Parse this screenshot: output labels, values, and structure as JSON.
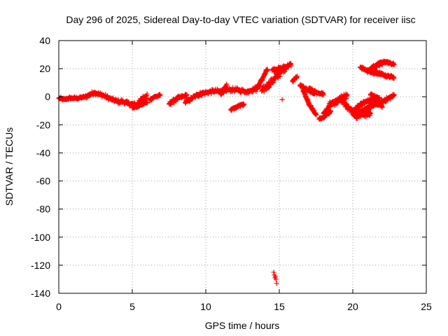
{
  "chart_data": {
    "type": "scatter",
    "title": "Day 296 of 2025, Sidereal Day-to-day VTEC variation (SDTVAR) for receiver iisc",
    "xlabel": "GPS time / hours",
    "ylabel": "SDTVAR / TECUs",
    "xlim": [
      0,
      25
    ],
    "ylim": [
      -140,
      40
    ],
    "xticks": [
      0,
      5,
      10,
      15,
      20,
      25
    ],
    "yticks": [
      -140,
      -120,
      -100,
      -80,
      -60,
      -40,
      -20,
      0,
      20,
      40
    ],
    "xtick_labels": [
      "0",
      "5",
      "10",
      "15",
      "20",
      "25"
    ],
    "ytick_labels": [
      "-140",
      "-120",
      "-100",
      "-80",
      "-60",
      "-40",
      "-20",
      "0",
      "20",
      "40"
    ],
    "grid": true,
    "marker": "+",
    "color": "#ff0000",
    "series": [
      {
        "name": "iisc",
        "segments": [
          {
            "start": 0.0,
            "end": 0.7,
            "step": 0.04,
            "points": [
              [
                0.0,
                -1
              ],
              [
                0.35,
                -2
              ],
              [
                0.7,
                -1
              ]
            ],
            "band": 2
          },
          {
            "start": 0.7,
            "end": 1.8,
            "step": 0.04,
            "points": [
              [
                0.7,
                -1
              ],
              [
                1.3,
                -1
              ],
              [
                1.8,
                0
              ]
            ],
            "band": 2
          },
          {
            "start": 1.8,
            "end": 3.0,
            "step": 0.04,
            "points": [
              [
                1.8,
                0
              ],
              [
                2.4,
                3
              ],
              [
                3.0,
                1
              ]
            ],
            "band": 3
          },
          {
            "start": 3.0,
            "end": 4.2,
            "step": 0.04,
            "points": [
              [
                3.0,
                1
              ],
              [
                3.6,
                -2
              ],
              [
                4.2,
                -4
              ]
            ],
            "band": 3
          },
          {
            "start": 4.2,
            "end": 5.5,
            "step": 0.04,
            "points": [
              [
                4.2,
                -3
              ],
              [
                4.8,
                -5
              ],
              [
                5.5,
                -6
              ]
            ],
            "band": 3
          },
          {
            "start": 5.3,
            "end": 6.0,
            "step": 0.03,
            "points": [
              [
                5.3,
                -7
              ],
              [
                5.6,
                -2
              ],
              [
                6.0,
                1
              ]
            ],
            "band": 4
          },
          {
            "start": 5.0,
            "end": 6.0,
            "step": 0.04,
            "points": [
              [
                5.0,
                -8
              ],
              [
                5.5,
                -6
              ],
              [
                6.0,
                -4
              ]
            ],
            "band": 2
          },
          {
            "start": 6.2,
            "end": 6.9,
            "step": 0.04,
            "points": [
              [
                6.2,
                -2
              ],
              [
                6.5,
                0
              ],
              [
                6.9,
                1
              ]
            ],
            "band": 2
          },
          {
            "start": 7.5,
            "end": 8.7,
            "step": 0.04,
            "points": [
              [
                7.5,
                -5
              ],
              [
                8.1,
                -1
              ],
              [
                8.7,
                1
              ]
            ],
            "band": 3
          },
          {
            "start": 8.6,
            "end": 9.8,
            "step": 0.04,
            "points": [
              [
                8.6,
                -4
              ],
              [
                9.2,
                0
              ],
              [
                9.8,
                3
              ]
            ],
            "band": 3
          },
          {
            "start": 9.6,
            "end": 11.3,
            "step": 0.04,
            "points": [
              [
                9.6,
                2
              ],
              [
                10.5,
                4
              ],
              [
                11.3,
                4
              ]
            ],
            "band": 3
          },
          {
            "start": 11.0,
            "end": 11.4,
            "step": 0.04,
            "points": [
              [
                11.0,
                2
              ],
              [
                11.2,
                5
              ],
              [
                11.4,
                8
              ]
            ],
            "band": 2
          },
          {
            "start": 11.3,
            "end": 12.6,
            "step": 0.04,
            "points": [
              [
                11.3,
                5
              ],
              [
                12.0,
                5
              ],
              [
                12.6,
                4
              ]
            ],
            "band": 3
          },
          {
            "start": 11.7,
            "end": 12.6,
            "step": 0.04,
            "points": [
              [
                11.7,
                -9
              ],
              [
                12.1,
                -7
              ],
              [
                12.6,
                -5
              ]
            ],
            "band": 2
          },
          {
            "start": 12.6,
            "end": 13.7,
            "step": 0.04,
            "points": [
              [
                12.6,
                3
              ],
              [
                13.2,
                5
              ],
              [
                13.7,
                8
              ]
            ],
            "band": 3
          },
          {
            "start": 13.4,
            "end": 14.2,
            "step": 0.03,
            "points": [
              [
                13.4,
                5
              ],
              [
                13.8,
                12
              ],
              [
                14.2,
                20
              ]
            ],
            "band": 3
          },
          {
            "start": 13.8,
            "end": 15.5,
            "step": 0.03,
            "points": [
              [
                13.8,
                4
              ],
              [
                14.6,
                12
              ],
              [
                15.5,
                22
              ]
            ],
            "band": 5
          },
          {
            "start": 14.5,
            "end": 15.8,
            "step": 0.03,
            "points": [
              [
                14.5,
                19
              ],
              [
                15.1,
                20
              ],
              [
                15.8,
                23
              ]
            ],
            "band": 3
          },
          {
            "start": 15.9,
            "end": 16.2,
            "step": 0.03,
            "points": [
              [
                15.9,
                11
              ],
              [
                16.05,
                13
              ],
              [
                16.2,
                14
              ]
            ],
            "band": 2
          },
          {
            "start": 16.4,
            "end": 17.4,
            "step": 0.03,
            "points": [
              [
                16.4,
                8
              ],
              [
                16.9,
                5
              ],
              [
                17.4,
                2
              ]
            ],
            "band": 2
          },
          {
            "start": 16.6,
            "end": 17.5,
            "step": 0.03,
            "points": [
              [
                16.6,
                5
              ],
              [
                17.0,
                -5
              ],
              [
                17.5,
                -13
              ]
            ],
            "band": 2
          },
          {
            "start": 17.0,
            "end": 18.0,
            "step": 0.03,
            "points": [
              [
                17.0,
                6
              ],
              [
                17.5,
                3
              ],
              [
                18.0,
                2
              ]
            ],
            "band": 2
          },
          {
            "start": 17.7,
            "end": 18.5,
            "step": 0.03,
            "points": [
              [
                17.7,
                -16
              ],
              [
                18.1,
                -14
              ],
              [
                18.5,
                -10
              ]
            ],
            "band": 2
          },
          {
            "start": 18.0,
            "end": 19.0,
            "step": 0.03,
            "points": [
              [
                18.0,
                -12
              ],
              [
                18.5,
                -6
              ],
              [
                19.0,
                -3
              ]
            ],
            "band": 3
          },
          {
            "start": 18.4,
            "end": 19.6,
            "step": 0.03,
            "points": [
              [
                18.4,
                -5
              ],
              [
                19.0,
                -2
              ],
              [
                19.6,
                1
              ]
            ],
            "band": 4
          },
          {
            "start": 19.2,
            "end": 20.3,
            "step": 0.03,
            "points": [
              [
                19.2,
                -2
              ],
              [
                19.7,
                -8
              ],
              [
                20.3,
                -14
              ]
            ],
            "band": 4
          },
          {
            "start": 19.9,
            "end": 21.2,
            "step": 0.03,
            "points": [
              [
                19.9,
                -10
              ],
              [
                20.5,
                -13
              ],
              [
                21.2,
                -12
              ]
            ],
            "band": 4
          },
          {
            "start": 20.2,
            "end": 21.3,
            "step": 0.03,
            "points": [
              [
                20.2,
                -8
              ],
              [
                20.8,
                -4
              ],
              [
                21.3,
                -2
              ]
            ],
            "band": 3
          },
          {
            "start": 20.4,
            "end": 21.6,
            "step": 0.03,
            "points": [
              [
                20.4,
                -11
              ],
              [
                21.0,
                -8
              ],
              [
                21.6,
                -4
              ]
            ],
            "band": 3
          },
          {
            "start": 21.0,
            "end": 22.8,
            "step": 0.03,
            "points": [
              [
                21.0,
                -8
              ],
              [
                21.9,
                -4
              ],
              [
                22.8,
                1
              ]
            ],
            "band": 3
          },
          {
            "start": 21.2,
            "end": 21.8,
            "step": 0.03,
            "points": [
              [
                21.2,
                2
              ],
              [
                21.5,
                0
              ],
              [
                21.8,
                -1
              ]
            ],
            "band": 2
          },
          {
            "start": 20.5,
            "end": 21.8,
            "step": 0.03,
            "points": [
              [
                20.5,
                21
              ],
              [
                21.1,
                18
              ],
              [
                21.8,
                16
              ]
            ],
            "band": 2
          },
          {
            "start": 21.0,
            "end": 22.0,
            "step": 0.03,
            "points": [
              [
                21.0,
                18
              ],
              [
                21.5,
                22
              ],
              [
                22.0,
                24
              ]
            ],
            "band": 3
          },
          {
            "start": 21.6,
            "end": 22.8,
            "step": 0.03,
            "points": [
              [
                21.6,
                23
              ],
              [
                22.2,
                25
              ],
              [
                22.8,
                23
              ]
            ],
            "band": 2
          },
          {
            "start": 21.5,
            "end": 22.8,
            "step": 0.03,
            "points": [
              [
                21.5,
                18
              ],
              [
                22.2,
                15
              ],
              [
                22.8,
                14
              ]
            ],
            "band": 2
          },
          {
            "start": 21.3,
            "end": 22.0,
            "step": 0.03,
            "points": [
              [
                21.3,
                -1
              ],
              [
                21.65,
                -4
              ],
              [
                22.0,
                -7
              ]
            ],
            "band": 2
          }
        ],
        "isolated_points": [
          [
            14.62,
            -125
          ],
          [
            14.66,
            -127
          ],
          [
            14.7,
            -129
          ],
          [
            14.74,
            -128
          ],
          [
            14.78,
            -130
          ],
          [
            14.83,
            -133
          ],
          [
            15.2,
            -2
          ]
        ]
      }
    ]
  }
}
